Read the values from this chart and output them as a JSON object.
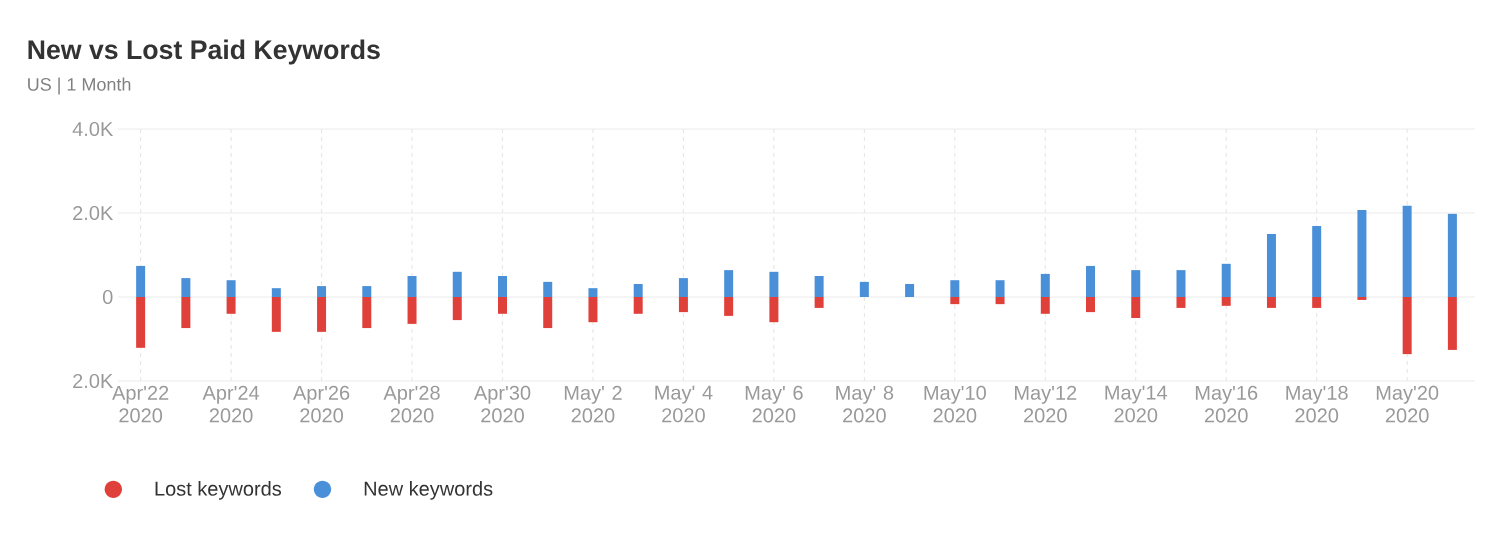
{
  "chart_data": {
    "type": "bar",
    "title": "New vs Lost Paid Keywords",
    "subtitle": "US | 1 Month",
    "categories": [
      "Apr'22 2020",
      null,
      "Apr'24 2020",
      null,
      "Apr'26 2020",
      null,
      "Apr'28 2020",
      null,
      "Apr'30 2020",
      null,
      "May' 2 2020",
      null,
      "May' 4 2020",
      null,
      "May' 6 2020",
      null,
      "May' 8 2020",
      null,
      "May'10 2020",
      null,
      "May'12 2020",
      null,
      "May'14 2020",
      null,
      "May'16 2020",
      null,
      "May'18 2020",
      null,
      "May'20 2020",
      null
    ],
    "series": [
      {
        "name": "Lost keywords",
        "color": "#e0403a",
        "values": [
          -1210,
          -740,
          -400,
          -830,
          -830,
          -740,
          -640,
          -550,
          -400,
          -740,
          -600,
          -400,
          -360,
          -450,
          -600,
          -260,
          0,
          0,
          -170,
          -170,
          -400,
          -360,
          -500,
          -260,
          -210,
          -260,
          -260,
          -70,
          -1360,
          -1260
        ]
      },
      {
        "name": "New keywords",
        "color": "#4a90d9",
        "values": [
          740,
          450,
          400,
          210,
          260,
          260,
          500,
          600,
          500,
          360,
          210,
          310,
          450,
          640,
          600,
          500,
          360,
          310,
          400,
          400,
          550,
          740,
          640,
          640,
          790,
          1500,
          1690,
          2070,
          2170,
          1980
        ]
      }
    ],
    "ylim": [
      -2000,
      4000
    ],
    "yticks": [
      {
        "value": -2000,
        "label": "2.0K"
      },
      0,
      {
        "value": 2000,
        "label": "2.0K"
      },
      {
        "value": 4000,
        "label": "4.0K"
      }
    ],
    "grid": true,
    "legend": "bottom left",
    "stacked": true
  }
}
